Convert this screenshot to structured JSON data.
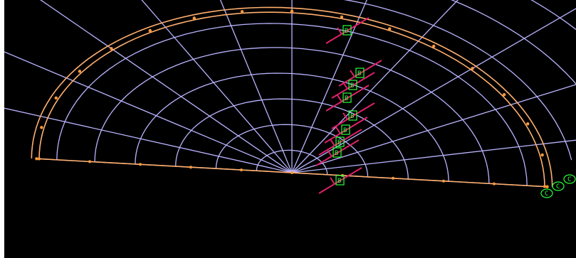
{
  "viewport": {
    "background": "#000000",
    "mesh_color": "#b9b4ff",
    "boundary_color": "#ffb070",
    "node_color": "#ff9a3c",
    "load_color": "#e0206a",
    "label_color": "#2bff3a"
  },
  "labels": {
    "load_tags": [
      "B",
      "B",
      "B",
      "B",
      "B",
      "B",
      "B",
      "B",
      "B"
    ],
    "support_tags": [
      "C",
      "C",
      "C"
    ]
  }
}
